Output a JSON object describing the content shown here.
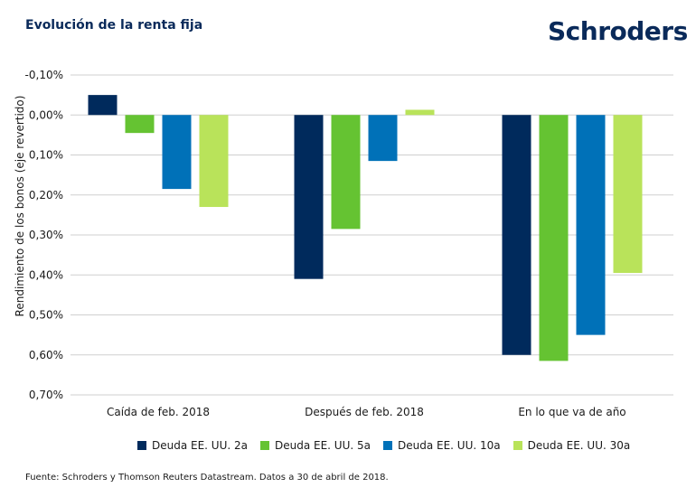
{
  "header": {
    "title": "Evolución de la renta fija",
    "logo_text": "Schroders"
  },
  "chart_data": {
    "type": "bar",
    "title": "Evolución de la renta fija",
    "ylabel": "Rendimiento de los bonos (eje revertido)",
    "xlabel": "",
    "y_inverted": true,
    "ylim": [
      -0.1,
      0.7
    ],
    "yticks": [
      -0.1,
      0.0,
      0.1,
      0.2,
      0.3,
      0.4,
      0.5,
      0.6,
      0.7
    ],
    "ytick_labels": [
      "-0,10%",
      "0,00%",
      "0,10%",
      "0,20%",
      "0,30%",
      "0,40%",
      "0,50%",
      "0,60%",
      "0,70%"
    ],
    "grid": true,
    "categories": [
      "Caída de feb. 2018",
      "Después de feb. 2018",
      "En lo que va de año"
    ],
    "series": [
      {
        "name": "Deuda EE. UU. 2a",
        "color": "#002a5c",
        "values": [
          -0.05,
          0.41,
          0.6
        ]
      },
      {
        "name": "Deuda EE. UU. 5a",
        "color": "#65c332",
        "values": [
          0.045,
          0.285,
          0.615
        ]
      },
      {
        "name": "Deuda EE. UU. 10a",
        "color": "#0071b8",
        "values": [
          0.185,
          0.115,
          0.55
        ]
      },
      {
        "name": "Deuda EE. UU. 30a",
        "color": "#b9e35a",
        "values": [
          0.23,
          -0.013,
          0.395
        ]
      }
    ],
    "legend_position": "bottom"
  },
  "footer": {
    "source": "Fuente: Schroders y Thomson Reuters Datastream. Datos a 30 de abril de 2018."
  }
}
